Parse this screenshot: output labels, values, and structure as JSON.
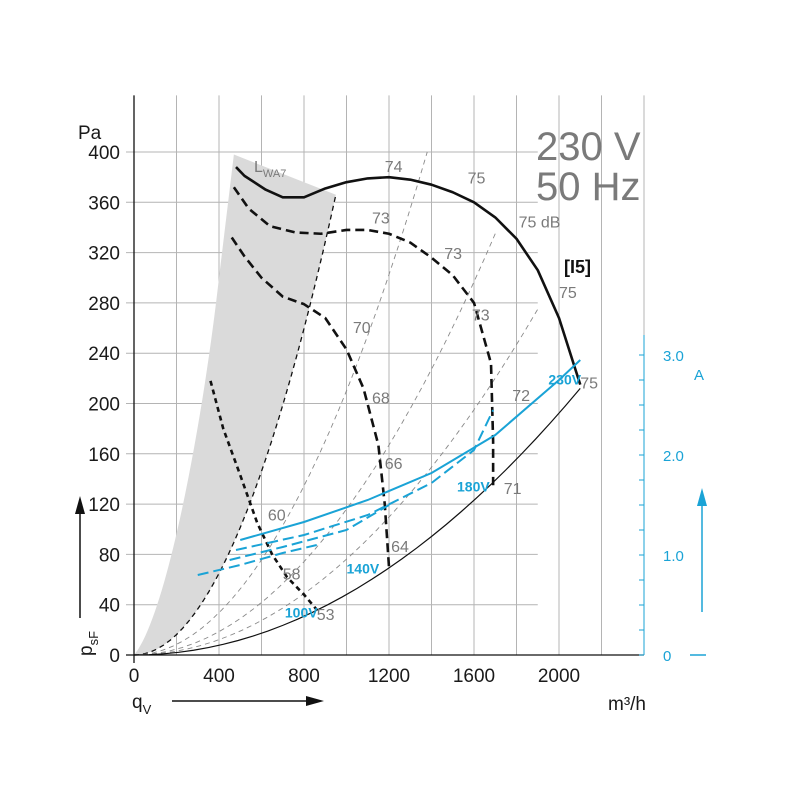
{
  "chart_data": {
    "type": "line",
    "header": {
      "voltage": "230 V",
      "frequency": "50 Hz"
    },
    "model_label": "[I5]",
    "x_axis": {
      "unit": "m³/h",
      "symbol": "q",
      "symbol_sub": "V",
      "range": [
        0,
        2400
      ],
      "ticks": [
        0,
        400,
        800,
        1200,
        1600,
        2000
      ]
    },
    "y_axis": {
      "unit": "Pa",
      "symbol": "p",
      "symbol_sub": "sF",
      "range": [
        0,
        400
      ],
      "ticks": [
        0,
        40,
        80,
        120,
        160,
        200,
        240,
        280,
        320,
        360,
        400
      ]
    },
    "y2_axis": {
      "unit": "A",
      "range": [
        0,
        3.0
      ],
      "ticks": [
        "0",
        "1.0",
        "2.0",
        "3.0"
      ],
      "color": "#1aa3d6"
    },
    "sound_label": {
      "text": "L",
      "sub": "WA7"
    },
    "colors": {
      "fan": "#111111",
      "current": "#1aa3d6",
      "grid": "#b4b4b4",
      "shade": "#dadada"
    },
    "fan_curves": [
      {
        "voltage": "230V",
        "style": "solid",
        "points": [
          [
            480,
            388
          ],
          [
            520,
            381
          ],
          [
            620,
            370
          ],
          [
            700,
            364
          ],
          [
            800,
            364
          ],
          [
            900,
            371
          ],
          [
            1000,
            376
          ],
          [
            1100,
            379
          ],
          [
            1200,
            380
          ],
          [
            1300,
            378
          ],
          [
            1400,
            374
          ],
          [
            1500,
            368
          ],
          [
            1600,
            360
          ],
          [
            1700,
            348
          ],
          [
            1800,
            331
          ],
          [
            1900,
            306
          ],
          [
            2000,
            268
          ],
          [
            2100,
            215
          ]
        ]
      },
      {
        "voltage": "180V",
        "style": "dashed",
        "points": [
          [
            470,
            372
          ],
          [
            540,
            355
          ],
          [
            640,
            341
          ],
          [
            760,
            336
          ],
          [
            880,
            335
          ],
          [
            1000,
            338
          ],
          [
            1100,
            338
          ],
          [
            1200,
            335
          ],
          [
            1300,
            328
          ],
          [
            1400,
            316
          ],
          [
            1500,
            302
          ],
          [
            1600,
            280
          ],
          [
            1680,
            232
          ],
          [
            1690,
            170
          ],
          [
            1690,
            135
          ]
        ]
      },
      {
        "voltage": "140V",
        "style": "dashed",
        "points": [
          [
            460,
            332
          ],
          [
            520,
            317
          ],
          [
            600,
            300
          ],
          [
            700,
            285
          ],
          [
            800,
            279
          ],
          [
            900,
            268
          ],
          [
            1000,
            243
          ],
          [
            1080,
            212
          ],
          [
            1150,
            167
          ],
          [
            1180,
            120
          ],
          [
            1200,
            70
          ]
        ]
      },
      {
        "voltage": "100V",
        "style": "dotted",
        "points": [
          [
            360,
            218
          ],
          [
            420,
            180
          ],
          [
            500,
            143
          ],
          [
            580,
            105
          ],
          [
            650,
            80
          ],
          [
            720,
            62
          ],
          [
            800,
            48
          ],
          [
            860,
            36
          ]
        ]
      }
    ],
    "system_curves_dashed": [
      {
        "x_end": 1380,
        "y_end": 400
      },
      {
        "x_end": 1700,
        "y_end": 335
      },
      {
        "x_end": 1900,
        "y_end": 275
      }
    ],
    "system_curve_solid": {
      "x_end": 2100,
      "y_end": 212
    },
    "current_curves": [
      {
        "voltage": "230V",
        "style": "solid",
        "points": [
          [
            500,
            1.15
          ],
          [
            800,
            1.33
          ],
          [
            1100,
            1.55
          ],
          [
            1400,
            1.82
          ],
          [
            1700,
            2.2
          ],
          [
            2000,
            2.75
          ],
          [
            2100,
            2.95
          ]
        ]
      },
      {
        "voltage": "180V",
        "style": "dashed",
        "points": [
          [
            480,
            1.05
          ],
          [
            800,
            1.2
          ],
          [
            1100,
            1.4
          ],
          [
            1400,
            1.72
          ],
          [
            1600,
            2.05
          ],
          [
            1690,
            2.45
          ]
        ]
      },
      {
        "voltage": "140V",
        "style": "dashed",
        "points": [
          [
            450,
            0.95
          ],
          [
            700,
            1.08
          ],
          [
            1000,
            1.25
          ],
          [
            1200,
            1.5
          ]
        ]
      },
      {
        "voltage": "100V",
        "style": "dashed",
        "points": [
          [
            300,
            0.8
          ],
          [
            500,
            0.9
          ],
          [
            700,
            1.02
          ],
          [
            860,
            1.1
          ]
        ]
      }
    ],
    "voltage_labels": [
      {
        "text": "230V",
        "x": 1950,
        "y": 215
      },
      {
        "text": "180V",
        "x": 1520,
        "y": 130
      },
      {
        "text": "140V",
        "x": 1000,
        "y": 65
      },
      {
        "text": "100V",
        "x": 710,
        "y": 30
      }
    ],
    "sound_levels": [
      {
        "text": "74",
        "x": 1180,
        "y": 384
      },
      {
        "text": "75",
        "x": 1570,
        "y": 375
      },
      {
        "text": "75 dB",
        "x": 1810,
        "y": 340
      },
      {
        "text": "73",
        "x": 1120,
        "y": 343
      },
      {
        "text": "73",
        "x": 1460,
        "y": 315
      },
      {
        "text": "73",
        "x": 1590,
        "y": 266
      },
      {
        "text": "75",
        "x": 2000,
        "y": 284
      },
      {
        "text": "70",
        "x": 1030,
        "y": 256
      },
      {
        "text": "68",
        "x": 1120,
        "y": 200
      },
      {
        "text": "72",
        "x": 1780,
        "y": 202
      },
      {
        "text": "75",
        "x": 2100,
        "y": 212
      },
      {
        "text": "66",
        "x": 1180,
        "y": 148
      },
      {
        "text": "71",
        "x": 1740,
        "y": 128
      },
      {
        "text": "60",
        "x": 630,
        "y": 107
      },
      {
        "text": "64",
        "x": 1210,
        "y": 82
      },
      {
        "text": "58",
        "x": 700,
        "y": 60
      },
      {
        "text": "53",
        "x": 860,
        "y": 28
      }
    ]
  }
}
